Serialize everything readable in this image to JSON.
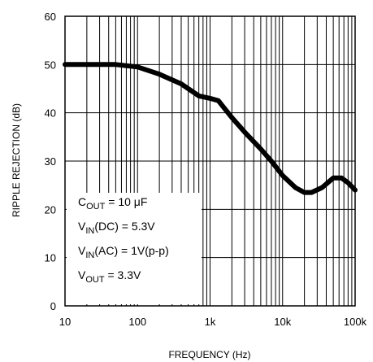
{
  "chart_data": {
    "type": "line",
    "xlabel": "FREQUENCY (Hz)",
    "ylabel": "RIPPLE REJECTION (dB)",
    "x_scale": "log",
    "xlim": [
      10,
      100000
    ],
    "ylim": [
      0,
      60
    ],
    "grid": true,
    "x_ticks": [
      {
        "value": 10,
        "label": "10"
      },
      {
        "value": 100,
        "label": "100"
      },
      {
        "value": 1000,
        "label": "1k"
      },
      {
        "value": 10000,
        "label": "10k"
      },
      {
        "value": 100000,
        "label": "100k"
      }
    ],
    "y_ticks": [
      {
        "value": 0,
        "label": "0"
      },
      {
        "value": 10,
        "label": "10"
      },
      {
        "value": 20,
        "label": "20"
      },
      {
        "value": 30,
        "label": "30"
      },
      {
        "value": 40,
        "label": "40"
      },
      {
        "value": 50,
        "label": "50"
      },
      {
        "value": 60,
        "label": "60"
      }
    ],
    "series": [
      {
        "color": "#000000",
        "x": [
          10,
          20,
          50,
          100,
          200,
          400,
          700,
          1000,
          1300,
          2000,
          3000,
          5000,
          7000,
          10000,
          15000,
          20000,
          25000,
          35000,
          50000,
          65000,
          80000,
          100000
        ],
        "y": [
          50,
          50,
          50,
          49.5,
          48,
          46,
          43.5,
          43,
          42.5,
          39,
          36,
          32.5,
          30,
          27,
          24.5,
          23.5,
          23.5,
          24.5,
          26.5,
          26.5,
          25.5,
          24
        ]
      }
    ],
    "annotations": [
      {
        "main": "C",
        "sub": "OUT",
        "rest": " = 10 μF"
      },
      {
        "main": "V",
        "sub": "IN",
        "rest": "(DC) = 5.3V"
      },
      {
        "main": "V",
        "sub": "IN",
        "rest": "(AC) = 1V(p-p)"
      },
      {
        "main": "V",
        "sub": "OUT",
        "rest": " = 3.3V"
      }
    ]
  }
}
